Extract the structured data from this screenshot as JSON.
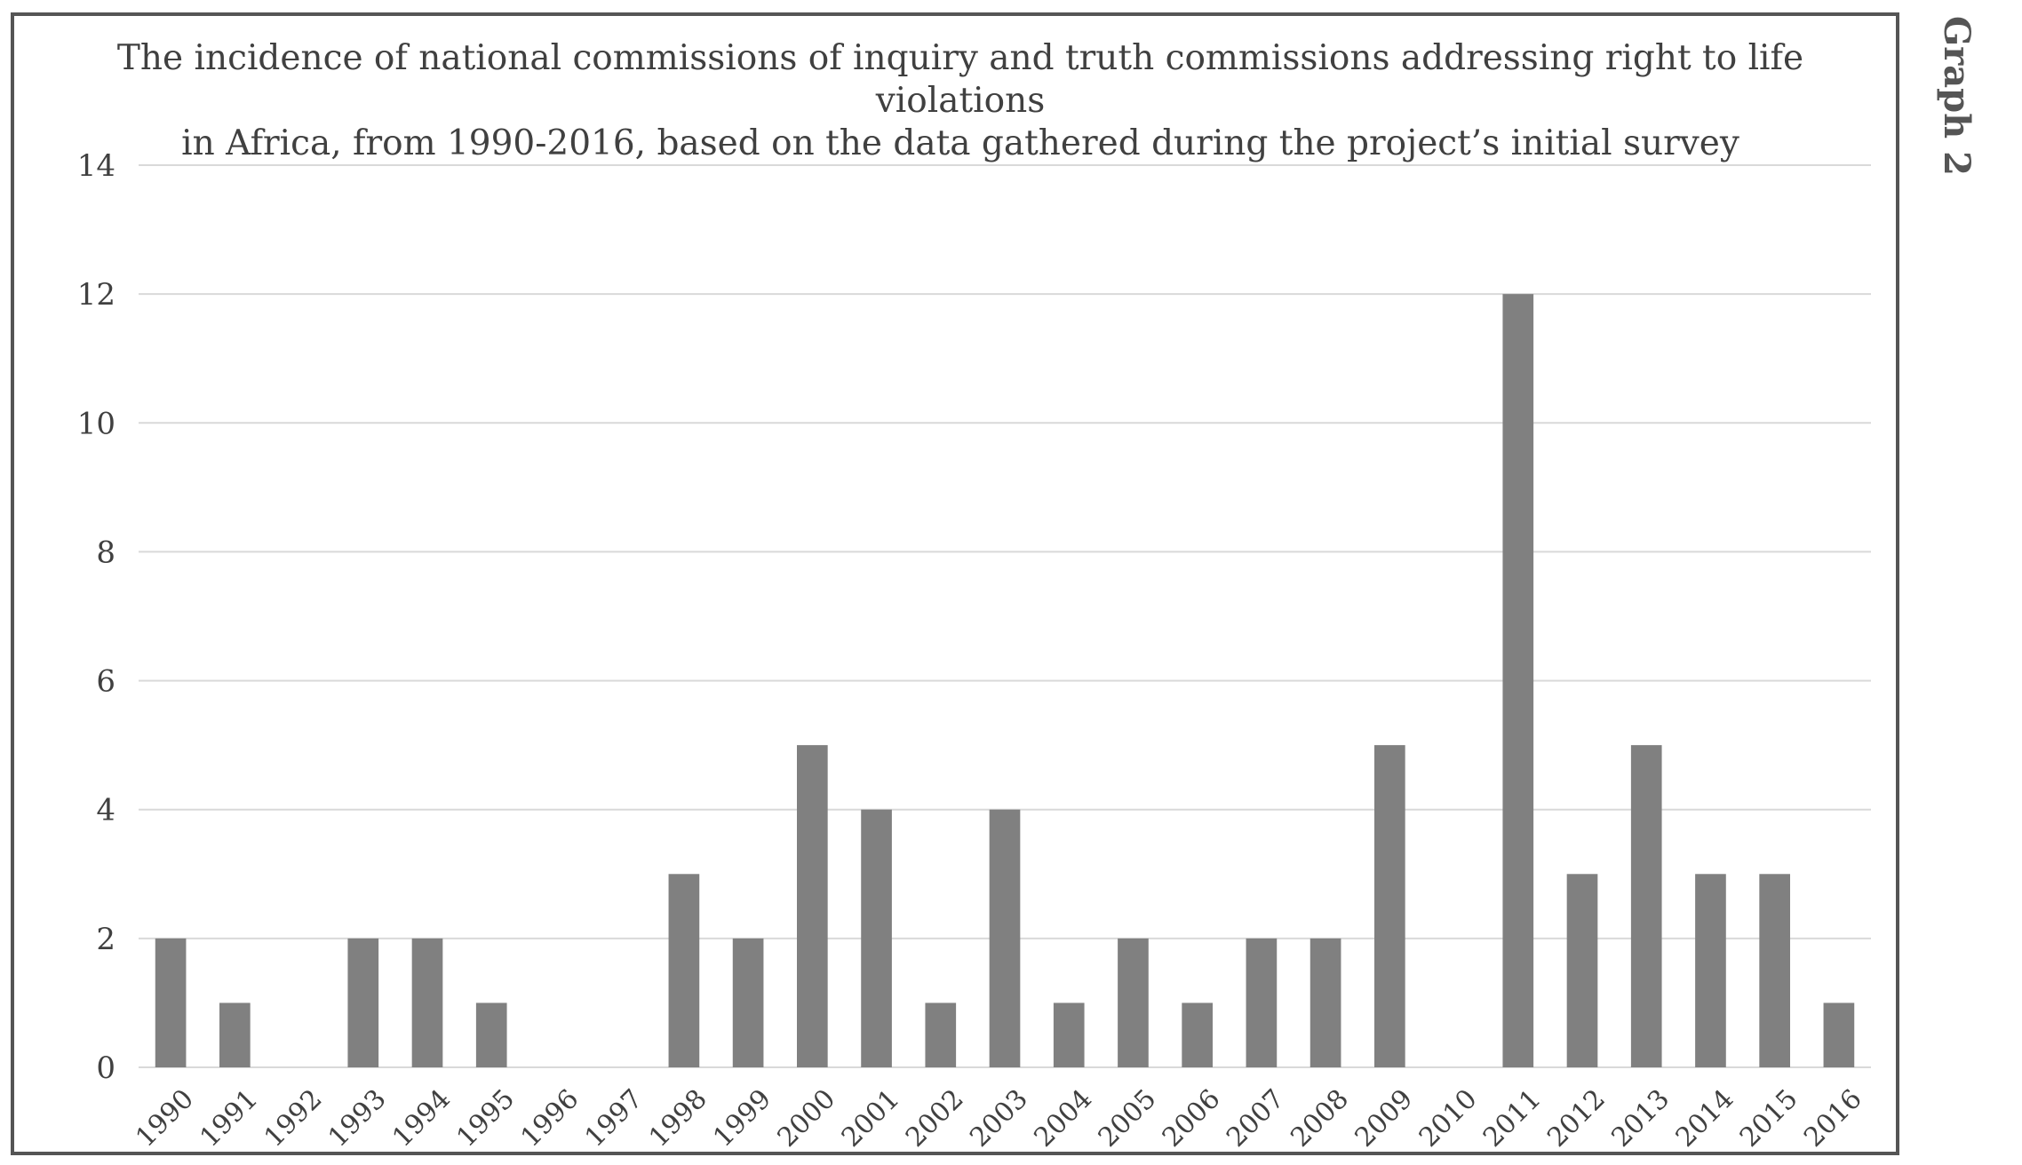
{
  "side_label": "Graph 2",
  "chart_data": {
    "type": "bar",
    "title_lines": [
      "The incidence of national commissions of inquiry and truth commissions addressing right to life violations",
      "in Africa, from 1990-2016, based on the data gathered during the project’s initial survey"
    ],
    "xlabel": "",
    "ylabel": "",
    "categories": [
      "1990",
      "1991",
      "1992",
      "1993",
      "1994",
      "1995",
      "1996",
      "1997",
      "1998",
      "1999",
      "2000",
      "2001",
      "2002",
      "2003",
      "2004",
      "2005",
      "2006",
      "2007",
      "2008",
      "2009",
      "2010",
      "2011",
      "2012",
      "2013",
      "2014",
      "2015",
      "2016"
    ],
    "values": [
      2,
      1,
      0,
      2,
      2,
      1,
      0,
      0,
      3,
      2,
      5,
      4,
      1,
      4,
      1,
      2,
      1,
      2,
      2,
      5,
      0,
      12,
      3,
      5,
      3,
      3,
      1
    ],
    "ylim": [
      0,
      14
    ],
    "yticks": [
      "0",
      "2",
      "4",
      "6",
      "8",
      "10",
      "12",
      "14"
    ],
    "grid": "horizontal",
    "legend": "none",
    "bar_color": "#808080",
    "grid_color": "#d9d9d9"
  }
}
